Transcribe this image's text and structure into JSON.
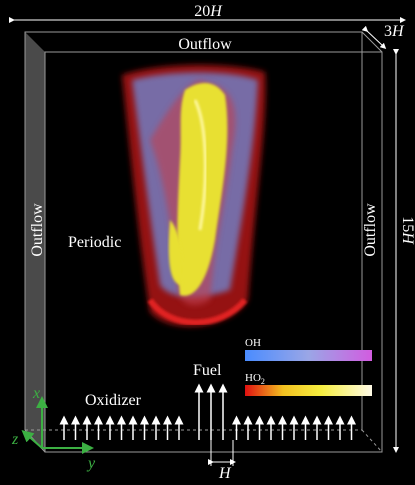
{
  "dimensions": {
    "width": {
      "number": "20",
      "unit": "H"
    },
    "depth": {
      "number": "3",
      "unit": "H"
    },
    "height": {
      "number": "15",
      "unit": "H"
    },
    "jet_width": "H"
  },
  "boundaries": {
    "top": "Outflow",
    "left": "Outflow",
    "right": "Outflow",
    "side": "Periodic"
  },
  "inflow": {
    "fuel": "Fuel",
    "oxidizer": "Oxidizer"
  },
  "colorbars": {
    "oh": "OH",
    "ho2": {
      "text": "HO",
      "subscript": "2"
    }
  },
  "axes": {
    "x": "x",
    "y": "y",
    "z": "z"
  }
}
